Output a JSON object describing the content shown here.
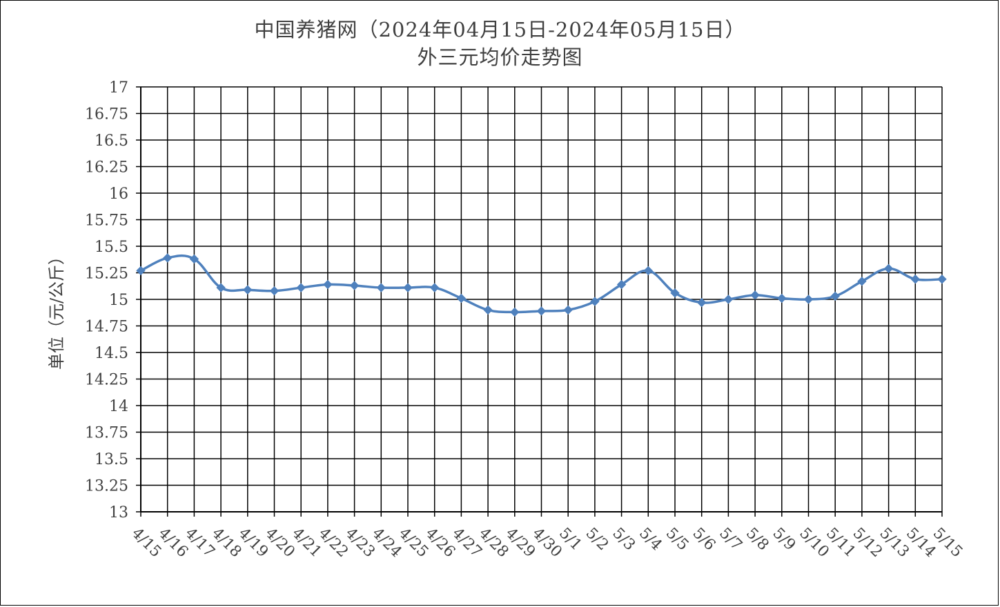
{
  "chart_data": {
    "type": "line",
    "title": "中国养猪网（2024年04月15日-2024年05月15日）",
    "subtitle": "外三元均价走势图",
    "ylabel": "单位（元/公斤）",
    "xlabel": "",
    "ylim": [
      13,
      17
    ],
    "ytick_step": 0.25,
    "yticks": [
      "17",
      "16.75",
      "16.5",
      "16.25",
      "16",
      "15.75",
      "15.5",
      "15.25",
      "15",
      "14.75",
      "14.5",
      "14.25",
      "14",
      "13.75",
      "13.5",
      "13.25",
      "13"
    ],
    "grid": true,
    "legend": "none",
    "categories": [
      "4/15",
      "4/16",
      "4/17",
      "4/18",
      "4/19",
      "4/20",
      "4/21",
      "4/22",
      "4/23",
      "4/24",
      "4/25",
      "4/26",
      "4/27",
      "4/28",
      "4/29",
      "4/30",
      "5/1",
      "5/2",
      "5/3",
      "5/4",
      "5/5",
      "5/6",
      "5/7",
      "5/8",
      "5/9",
      "5/10",
      "5/11",
      "5/12",
      "5/13",
      "5/14",
      "5/15"
    ],
    "series": [
      {
        "values": [
          15.27,
          15.39,
          15.38,
          15.11,
          15.09,
          15.08,
          15.11,
          15.14,
          15.13,
          15.11,
          15.11,
          15.11,
          15.01,
          14.9,
          14.88,
          14.89,
          14.9,
          14.98,
          15.14,
          15.27,
          15.06,
          14.97,
          15.0,
          15.04,
          15.01,
          15.0,
          15.03,
          15.17,
          15.29,
          15.19,
          15.19
        ],
        "color": "#4f81bd"
      }
    ]
  }
}
